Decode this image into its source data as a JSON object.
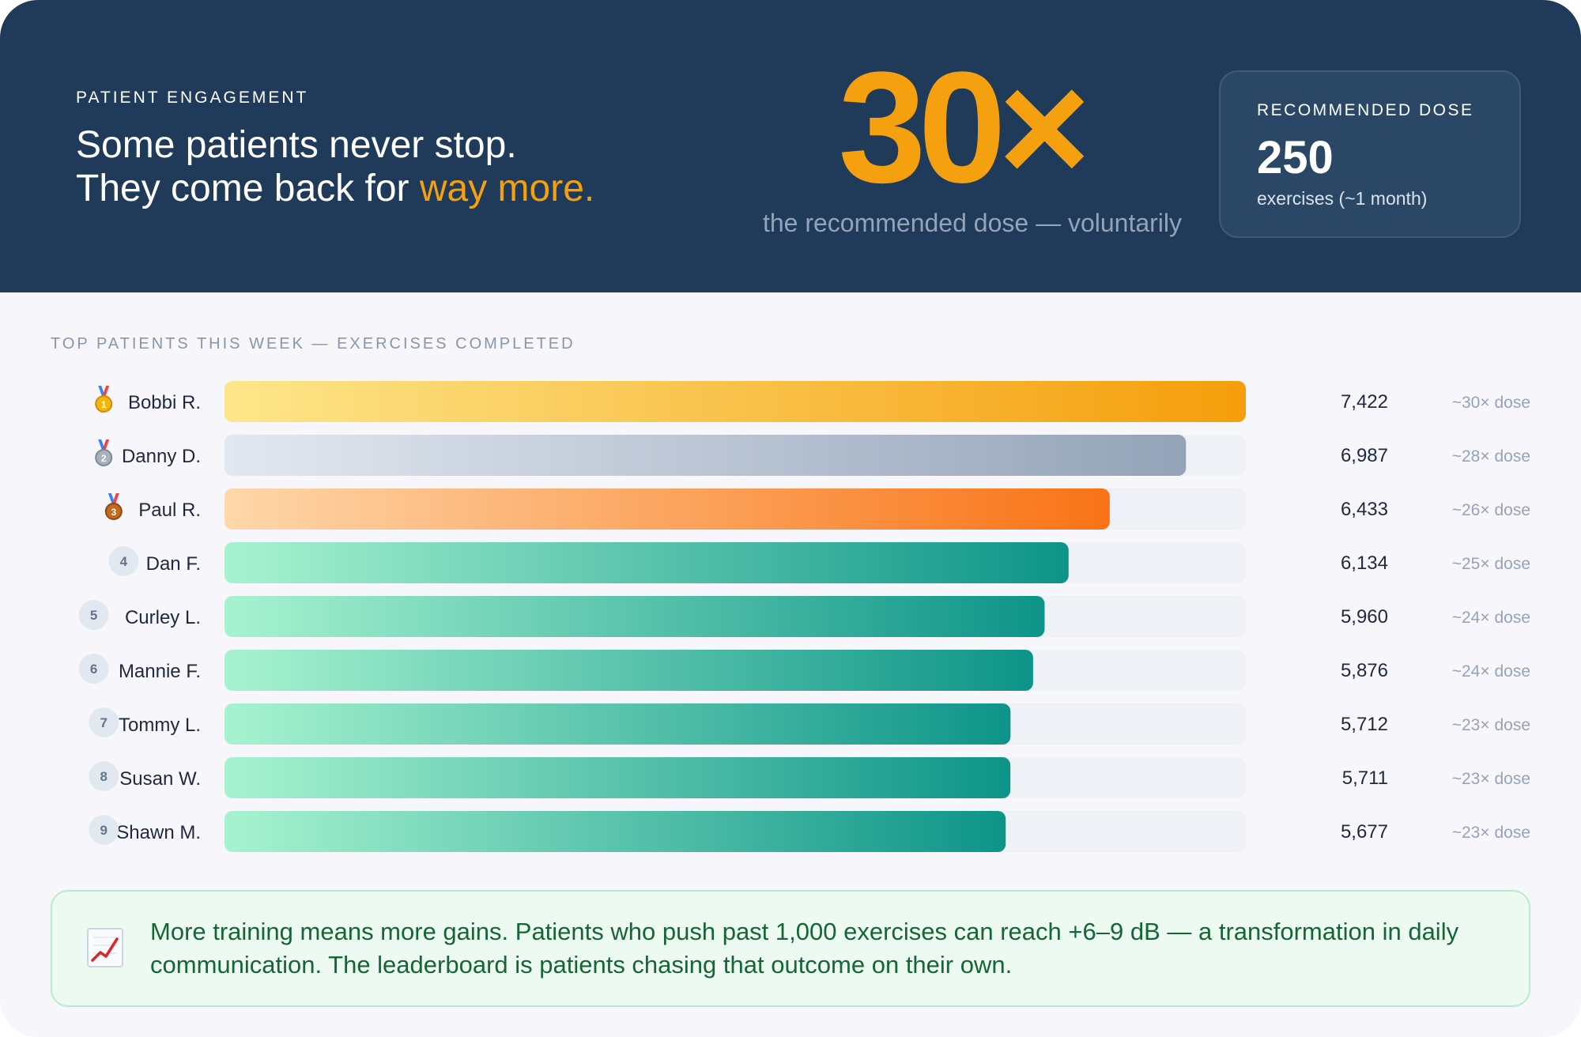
{
  "header": {
    "eyebrow": "PATIENT ENGAGEMENT",
    "headline_line1": "Some patients never stop.",
    "headline_line2_prefix": "They come back for ",
    "headline_line2_accent": "way more.",
    "multiplier": "30×",
    "multiplier_caption": "the recommended dose — voluntarily",
    "dose_box": {
      "label": "RECOMMENDED DOSE",
      "value": "250",
      "note": "exercises (~1 month)"
    }
  },
  "section_title": "TOP PATIENTS THIS WEEK — EXERCISES COMPLETED",
  "colors": {
    "header_bg": "#1f3b59",
    "accent": "#f5a00f",
    "gold": [
      "#fde68a",
      "#f59e0b"
    ],
    "silver": [
      "#e2e8f0",
      "#94a3b8"
    ],
    "bronze": [
      "#fed7aa",
      "#f97316"
    ],
    "teal": [
      "#a7f3d0",
      "#0d9488"
    ],
    "track": "#eef1f5"
  },
  "chart_data": {
    "type": "bar",
    "orientation": "horizontal",
    "title": "TOP PATIENTS THIS WEEK — EXERCISES COMPLETED",
    "categories": [
      "Bobbi R.",
      "Danny D.",
      "Paul R.",
      "Dan F.",
      "Curley L.",
      "Mannie F.",
      "Tommy L.",
      "Susan W.",
      "Shawn M."
    ],
    "values": [
      7422,
      6987,
      6433,
      6134,
      5960,
      5876,
      5712,
      5711,
      5677
    ],
    "value_labels": [
      "7,422",
      "6,987",
      "6,433",
      "6,134",
      "5,960",
      "5,876",
      "5,712",
      "5,711",
      "5,677"
    ],
    "dose_labels": [
      "~30× dose",
      "~28× dose",
      "~26× dose",
      "~25× dose",
      "~24× dose",
      "~24× dose",
      "~23× dose",
      "~23× dose",
      "~23× dose"
    ],
    "ranks": [
      "1",
      "2",
      "3",
      "4",
      "5",
      "6",
      "7",
      "8",
      "9"
    ],
    "rank_style": [
      "gold-medal",
      "silver-medal",
      "bronze-medal",
      "badge",
      "badge",
      "badge",
      "badge",
      "badge",
      "badge"
    ],
    "xlim": [
      0,
      7422
    ]
  },
  "insight": {
    "icon": "chart-increasing-icon",
    "text": "More training means more gains. Patients who push past 1,000 exercises can reach +6–9 dB — a transformation in daily communication. The leaderboard is patients chasing that outcome on their own."
  }
}
